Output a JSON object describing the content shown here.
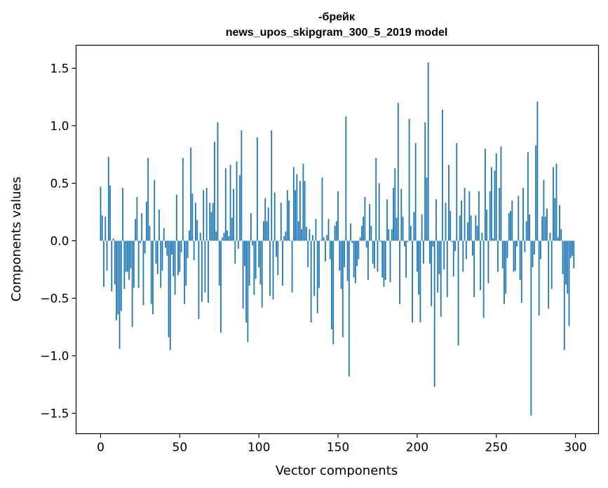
{
  "chart_data": {
    "type": "bar",
    "title": [
      "-брейк",
      "news_upos_skipgram_300_5_2019 model"
    ],
    "xlabel": "Vector components",
    "ylabel": "Components values",
    "xlim": [
      -15.5,
      314.6
    ],
    "ylim": [
      -1.677,
      1.7
    ],
    "xticks": [
      0,
      50,
      100,
      150,
      200,
      250,
      300
    ],
    "xtick_labels": [
      "0",
      "50",
      "100",
      "150",
      "200",
      "250",
      "300"
    ],
    "yticks": [
      -1.5,
      -1.0,
      -0.5,
      0.0,
      0.5,
      1.0,
      1.5
    ],
    "ytick_labels": [
      "−1.5",
      "−1.0",
      "−0.5",
      "0.0",
      "0.5",
      "1.0",
      "1.5"
    ],
    "grid": false,
    "bar_color": "#1f77b4",
    "values": [
      0.47,
      0.22,
      -0.4,
      0.21,
      -0.26,
      0.73,
      0.48,
      -0.44,
      0.02,
      -0.38,
      -0.69,
      -0.64,
      -0.94,
      -0.61,
      0.46,
      -0.42,
      -0.27,
      -0.27,
      -0.34,
      -0.24,
      -0.75,
      -0.41,
      0.19,
      0.38,
      -0.41,
      -0.02,
      0.24,
      -0.56,
      -0.11,
      0.34,
      0.72,
      0.13,
      -0.55,
      -0.64,
      0.53,
      -0.2,
      -0.29,
      0.27,
      -0.41,
      -0.26,
      0.11,
      -0.06,
      -0.13,
      -0.84,
      -0.95,
      -0.12,
      -0.31,
      -0.47,
      0.4,
      -0.3,
      -0.27,
      -0.1,
      0.72,
      -0.55,
      -0.39,
      -0.15,
      0.09,
      0.81,
      0.41,
      -0.17,
      0.33,
      0.18,
      -0.68,
      0.07,
      -0.53,
      0.44,
      -0.45,
      0.46,
      -0.54,
      0.33,
      0.25,
      0.33,
      0.86,
      0.08,
      1.03,
      -0.39,
      -0.8,
      0.03,
      0.07,
      0.63,
      0.09,
      0.04,
      0.66,
      0.2,
      0.45,
      -0.2,
      0.69,
      -0.07,
      0.57,
      0.96,
      -0.59,
      -0.22,
      -0.71,
      -0.88,
      -0.39,
      0.24,
      -0.04,
      -0.47,
      -0.33,
      0.9,
      -0.23,
      -0.38,
      -0.58,
      0.17,
      0.37,
      0.17,
      0.29,
      -0.48,
      0.96,
      -0.51,
      0.42,
      -0.14,
      -0.3,
      0.0,
      0.33,
      -0.39,
      0.04,
      0.08,
      0.44,
      0.35,
      0.005,
      -0.45,
      0.64,
      0.44,
      0.58,
      0.17,
      0.52,
      0.1,
      0.67,
      0.52,
      0.12,
      -0.23,
      0.1,
      -0.71,
      0.05,
      -0.48,
      0.19,
      -0.63,
      -0.41,
      0.005,
      0.55,
      0.03,
      -0.18,
      0.05,
      0.19,
      -0.16,
      -0.77,
      -0.9,
      0.13,
      0.17,
      0.43,
      -0.26,
      -0.42,
      -0.84,
      -0.23,
      1.08,
      -0.35,
      -1.18,
      0.15,
      -0.02,
      -0.32,
      -0.37,
      -0.22,
      -0.16,
      0.03,
      0.13,
      0.21,
      0.38,
      -0.06,
      -0.34,
      0.32,
      0.13,
      -0.2,
      -0.24,
      0.72,
      -0.27,
      0.5,
      -0.01,
      -0.32,
      -0.4,
      -0.34,
      0.36,
      0.1,
      -0.36,
      0.1,
      0.46,
      0.63,
      0.2,
      1.2,
      -0.55,
      0.45,
      0.21,
      -0.05,
      -0.32,
      -0.01,
      1.06,
      0.13,
      -0.71,
      0.25,
      0.85,
      -0.27,
      -0.47,
      -0.71,
      0.23,
      -0.2,
      1.03,
      0.55,
      1.55,
      -0.2,
      -0.57,
      -0.05,
      -1.27,
      0.36,
      -0.45,
      -0.29,
      -0.66,
      1.14,
      -0.25,
      0.33,
      -0.49,
      0.66,
      0.26,
      -0.01,
      -0.31,
      -0.09,
      0.85,
      -0.91,
      0.22,
      0.35,
      -0.27,
      0.46,
      -0.16,
      0.16,
      0.43,
      0.22,
      -0.13,
      -0.49,
      0.22,
      0.13,
      0.43,
      -0.43,
      0.07,
      -0.67,
      0.8,
      0.27,
      -0.37,
      0.43,
      0.64,
      0.02,
      0.61,
      0.76,
      -0.27,
      0.46,
      0.82,
      -0.24,
      -0.55,
      -0.46,
      -0.15,
      0.24,
      0.26,
      0.35,
      -0.27,
      -0.26,
      -0.05,
      0.39,
      -0.34,
      -0.54,
      0.46,
      -0.1,
      0.17,
      0.77,
      0.23,
      -1.52,
      -0.23,
      -0.12,
      0.83,
      1.21,
      -0.65,
      -0.16,
      0.21,
      0.53,
      0.21,
      0.28,
      -0.59,
      0.07,
      -0.42,
      0.64,
      0.37,
      0.67,
      0.03,
      0.31,
      0.1,
      -0.29,
      -0.95,
      -0.38,
      -0.46,
      -0.74,
      -0.15,
      -0.13,
      -0.24
    ]
  }
}
